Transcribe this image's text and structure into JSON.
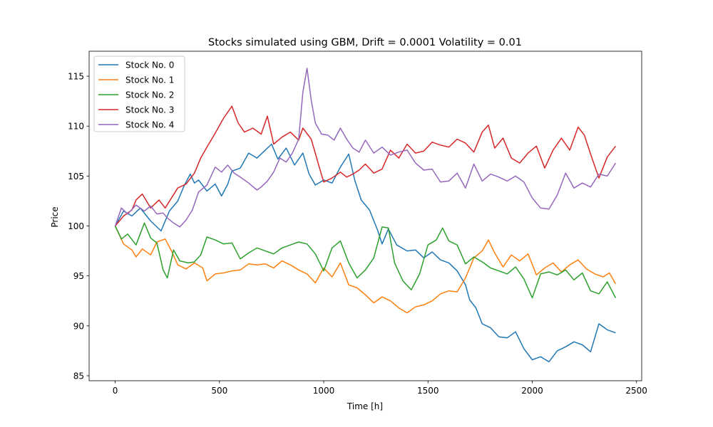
{
  "chart_data": {
    "type": "line",
    "title": "Stocks simulated using GBM, Drift = 0.0001 Volatility = 0.01",
    "xlabel": "Time [h]",
    "ylabel": "Price",
    "xlim": [
      -125,
      2525
    ],
    "ylim": [
      84.5,
      117.5
    ],
    "xticks": [
      0,
      500,
      1000,
      1500,
      2000,
      2500
    ],
    "yticks": [
      85,
      90,
      95,
      100,
      105,
      110,
      115
    ],
    "grid": false,
    "legend_position": "upper-left",
    "series": [
      {
        "name": "Stock No. 0",
        "color": "#1f77b4",
        "x": [
          0,
          40,
          80,
          120,
          170,
          220,
          260,
          300,
          330,
          360,
          380,
          400,
          440,
          480,
          510,
          540,
          560,
          600,
          640,
          680,
          720,
          750,
          780,
          820,
          860,
          900,
          930,
          960,
          1000,
          1040,
          1080,
          1120,
          1150,
          1180,
          1220,
          1260,
          1280,
          1310,
          1350,
          1400,
          1440,
          1480,
          1520,
          1560,
          1600,
          1640,
          1680,
          1700,
          1730,
          1760,
          1800,
          1840,
          1880,
          1920,
          1960,
          2000,
          2040,
          2080,
          2120,
          2160,
          2200,
          2240,
          2280,
          2320,
          2360,
          2400
        ],
        "y": [
          100,
          101.5,
          101,
          101.8,
          100.5,
          99.5,
          101.5,
          102.5,
          104,
          105.2,
          104.3,
          104.6,
          103.5,
          104.2,
          103,
          104.2,
          105.5,
          105.8,
          107.3,
          106.8,
          107.6,
          108.2,
          106.7,
          107.8,
          106.1,
          107.3,
          105.2,
          104.1,
          104.6,
          104.3,
          105.9,
          107.2,
          104.5,
          102.6,
          101.6,
          99.5,
          98.2,
          99.7,
          98.1,
          97.5,
          97.6,
          96.8,
          97.4,
          96.6,
          96.3,
          95.5,
          94.1,
          92.6,
          91.8,
          90.2,
          89.8,
          88.9,
          88.8,
          89.4,
          87.7,
          86.6,
          86.9,
          86.4,
          87.5,
          87.9,
          88.4,
          88.1,
          87.4,
          90.2,
          89.6,
          89.3
        ]
      },
      {
        "name": "Stock No. 1",
        "color": "#ff7f0e",
        "x": [
          0,
          40,
          80,
          100,
          130,
          170,
          200,
          240,
          270,
          300,
          340,
          380,
          420,
          440,
          480,
          520,
          560,
          600,
          640,
          680,
          720,
          760,
          800,
          840,
          880,
          920,
          960,
          1000,
          1040,
          1080,
          1120,
          1160,
          1200,
          1240,
          1280,
          1320,
          1360,
          1400,
          1440,
          1480,
          1520,
          1560,
          1600,
          1640,
          1680,
          1720,
          1760,
          1790,
          1820,
          1860,
          1900,
          1940,
          1980,
          2020,
          2060,
          2100,
          2140,
          2180,
          2220,
          2260,
          2300,
          2340,
          2370,
          2400
        ],
        "y": [
          100,
          98.2,
          97.6,
          96.9,
          97.7,
          97.1,
          98.4,
          98.7,
          97.5,
          96.1,
          95.7,
          96.3,
          95.8,
          94.5,
          95.2,
          95.3,
          95.5,
          95.6,
          96.2,
          96.1,
          96.2,
          95.8,
          96.5,
          96.1,
          95.6,
          95.2,
          94.3,
          95.8,
          94.9,
          96.3,
          94.1,
          93.8,
          93.1,
          92.3,
          92.9,
          92.5,
          91.8,
          91.3,
          91.9,
          92.1,
          92.5,
          93.2,
          93.5,
          93.4,
          94.8,
          96.8,
          97.5,
          98.6,
          97.3,
          95.9,
          97.1,
          96.5,
          97.2,
          95.1,
          95.8,
          96.3,
          95.4,
          96.1,
          96.6,
          95.7,
          95.2,
          94.9,
          95.3,
          94.2
        ]
      },
      {
        "name": "Stock No. 2",
        "color": "#2ca02c",
        "x": [
          0,
          30,
          60,
          100,
          140,
          170,
          200,
          230,
          250,
          280,
          310,
          350,
          380,
          410,
          440,
          480,
          520,
          560,
          600,
          640,
          680,
          720,
          760,
          800,
          840,
          880,
          920,
          960,
          1000,
          1040,
          1080,
          1120,
          1160,
          1200,
          1240,
          1280,
          1310,
          1340,
          1380,
          1420,
          1460,
          1500,
          1540,
          1570,
          1600,
          1640,
          1680,
          1720,
          1760,
          1800,
          1840,
          1880,
          1920,
          1960,
          2000,
          2040,
          2080,
          2120,
          2160,
          2200,
          2240,
          2280,
          2320,
          2360,
          2400
        ],
        "y": [
          100,
          98.7,
          99.2,
          98.1,
          100.3,
          98.8,
          98.3,
          95.6,
          94.8,
          97.6,
          96.5,
          96.3,
          96.4,
          97.1,
          98.9,
          98.6,
          98.2,
          98.3,
          96.7,
          97.3,
          97.8,
          97.5,
          97.2,
          97.8,
          98.1,
          98.4,
          98.2,
          97.2,
          95.5,
          97.8,
          98.5,
          96.3,
          94.8,
          95.6,
          96.8,
          99.9,
          99.8,
          96.3,
          94.5,
          93.6,
          95.2,
          98.1,
          98.6,
          99.8,
          98.5,
          98.1,
          96.2,
          96.9,
          96.4,
          95.8,
          95.5,
          95.2,
          95.9,
          94.7,
          92.8,
          95.2,
          95.4,
          95.1,
          95.6,
          94.6,
          95.3,
          93.5,
          93.2,
          94.4,
          92.8
        ]
      },
      {
        "name": "Stock No. 3",
        "color": "#d62728",
        "x": [
          0,
          40,
          80,
          100,
          130,
          170,
          210,
          240,
          270,
          300,
          340,
          380,
          410,
          440,
          480,
          520,
          560,
          590,
          620,
          660,
          700,
          730,
          760,
          800,
          840,
          880,
          900,
          940,
          980,
          1000,
          1040,
          1080,
          1110,
          1140,
          1170,
          1200,
          1240,
          1280,
          1320,
          1360,
          1400,
          1440,
          1480,
          1520,
          1560,
          1600,
          1640,
          1680,
          1720,
          1760,
          1790,
          1820,
          1860,
          1900,
          1940,
          1980,
          2020,
          2060,
          2100,
          2140,
          2180,
          2220,
          2250,
          2280,
          2320,
          2360,
          2400
        ],
        "y": [
          100,
          101,
          101.6,
          102.6,
          103.2,
          101.8,
          102.6,
          101.8,
          102.8,
          103.8,
          104.2,
          105.3,
          106.8,
          107.9,
          109.3,
          110.8,
          112.0,
          110.3,
          109.4,
          109.8,
          109.2,
          111.0,
          108.2,
          108.9,
          109.4,
          108.6,
          109.8,
          108.7,
          105.8,
          104.4,
          104.8,
          105.4,
          104.9,
          105.2,
          105.6,
          106.2,
          105.3,
          105.7,
          107.6,
          106.8,
          108.2,
          107.3,
          107.5,
          108.4,
          108.1,
          107.9,
          108.7,
          108.3,
          107.4,
          109.4,
          110.1,
          107.8,
          108.8,
          106.8,
          106.3,
          107.3,
          108.0,
          105.8,
          107.6,
          108.8,
          107.6,
          109.9,
          109.1,
          107.2,
          104.8,
          106.9,
          108.0
        ]
      },
      {
        "name": "Stock No. 4",
        "color": "#9467bd",
        "x": [
          0,
          30,
          60,
          100,
          140,
          170,
          200,
          230,
          250,
          280,
          310,
          340,
          370,
          400,
          440,
          480,
          510,
          540,
          570,
          600,
          640,
          680,
          700,
          730,
          760,
          790,
          820,
          850,
          880,
          900,
          920,
          940,
          960,
          990,
          1020,
          1050,
          1080,
          1110,
          1140,
          1170,
          1200,
          1240,
          1280,
          1320,
          1360,
          1400,
          1440,
          1480,
          1520,
          1560,
          1600,
          1640,
          1680,
          1720,
          1760,
          1800,
          1840,
          1880,
          1920,
          1960,
          2000,
          2040,
          2080,
          2120,
          2160,
          2200,
          2240,
          2280,
          2320,
          2360,
          2400
        ],
        "y": [
          100,
          101.8,
          101.2,
          102.1,
          101.5,
          102.0,
          101.2,
          101.3,
          100.8,
          100.3,
          99.9,
          100.6,
          101.6,
          103.4,
          104.1,
          105.9,
          105.4,
          106.1,
          105.3,
          104.9,
          104.3,
          103.6,
          103.9,
          104.5,
          105.4,
          106.8,
          106.4,
          107.3,
          108.7,
          113.4,
          115.8,
          112.6,
          110.3,
          109.2,
          109.1,
          108.6,
          109.8,
          108.7,
          107.8,
          107.4,
          108.6,
          107.3,
          107.9,
          107.1,
          107.4,
          107.6,
          106.3,
          105.6,
          105.7,
          104.4,
          104.5,
          105.3,
          103.8,
          106.2,
          104.5,
          105.2,
          104.9,
          104.5,
          105.0,
          104.4,
          102.8,
          101.8,
          101.7,
          103.1,
          105.3,
          103.8,
          104.3,
          103.9,
          105.2,
          105.0,
          106.3
        ]
      }
    ]
  }
}
